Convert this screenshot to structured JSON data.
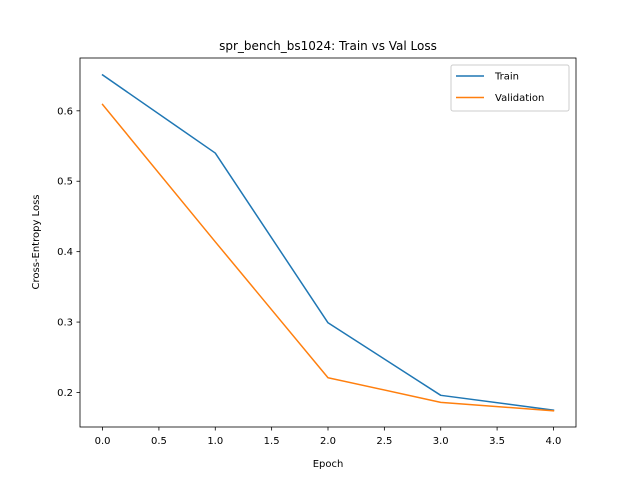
{
  "chart_data": {
    "type": "line",
    "title": "spr_bench_bs1024: Train vs Val Loss",
    "xlabel": "Epoch",
    "ylabel": "Cross-Entropy Loss",
    "x": [
      0,
      1,
      2,
      3,
      4
    ],
    "xlim": [
      -0.2,
      4.2
    ],
    "ylim": [
      0.151,
      0.675
    ],
    "xticks": [
      0.0,
      0.5,
      1.0,
      1.5,
      2.0,
      2.5,
      3.0,
      3.5,
      4.0
    ],
    "xtick_labels": [
      "0.0",
      "0.5",
      "1.0",
      "1.5",
      "2.0",
      "2.5",
      "3.0",
      "3.5",
      "4.0"
    ],
    "yticks": [
      0.2,
      0.3,
      0.4,
      0.5,
      0.6
    ],
    "ytick_labels": [
      "0.2",
      "0.3",
      "0.4",
      "0.5",
      "0.6"
    ],
    "grid": false,
    "legend_position": "top-right",
    "series": [
      {
        "name": "Train",
        "color": "#1f77b4",
        "values": [
          0.651,
          0.54,
          0.299,
          0.196,
          0.175
        ]
      },
      {
        "name": "Validation",
        "color": "#ff7f0e",
        "values": [
          0.609,
          0.414,
          0.221,
          0.186,
          0.174
        ]
      }
    ]
  }
}
